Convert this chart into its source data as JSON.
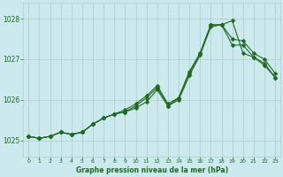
{
  "xlabel": "Graphe pression niveau de la mer (hPa)",
  "xlim": [
    -0.5,
    23.5
  ],
  "ylim": [
    1024.6,
    1028.4
  ],
  "yticks": [
    1025,
    1026,
    1027,
    1028
  ],
  "xticks": [
    0,
    1,
    2,
    3,
    4,
    5,
    6,
    7,
    8,
    9,
    10,
    11,
    12,
    13,
    14,
    15,
    16,
    17,
    18,
    19,
    20,
    21,
    22,
    23
  ],
  "bg_color": "#cce9ee",
  "grid_color": "#aacccc",
  "line_color": "#1e6b1e",
  "series1": {
    "x": [
      0,
      1,
      2,
      3,
      4,
      5,
      6,
      7,
      8,
      9,
      10,
      11,
      12,
      13,
      14,
      15,
      16,
      17,
      18,
      19,
      20,
      21,
      22,
      23
    ],
    "y": [
      1025.1,
      1025.05,
      1025.1,
      1025.2,
      1025.15,
      1025.2,
      1025.4,
      1025.55,
      1025.65,
      1025.7,
      1025.8,
      1025.95,
      1026.25,
      1025.85,
      1026.0,
      1026.6,
      1027.1,
      1027.8,
      1027.85,
      1027.35,
      1027.35,
      1027.05,
      1026.9,
      1026.55
    ]
  },
  "series2": {
    "x": [
      0,
      1,
      2,
      3,
      4,
      5,
      6,
      7,
      8,
      9,
      10,
      11,
      12,
      13,
      14,
      15,
      16,
      17,
      18,
      19,
      20,
      21,
      22,
      23
    ],
    "y": [
      1025.1,
      1025.05,
      1025.1,
      1025.2,
      1025.15,
      1025.2,
      1025.4,
      1025.55,
      1025.65,
      1025.7,
      1025.85,
      1026.05,
      1026.3,
      1025.85,
      1026.05,
      1026.7,
      1027.15,
      1027.85,
      1027.85,
      1027.5,
      1027.45,
      1027.15,
      1027.0,
      1026.65
    ]
  },
  "series3": {
    "x": [
      0,
      1,
      2,
      3,
      4,
      5,
      6,
      7,
      8,
      9,
      10,
      11,
      12,
      13,
      14,
      15,
      16,
      17,
      18,
      19,
      20,
      21,
      22,
      23
    ],
    "y": [
      1025.1,
      1025.05,
      1025.1,
      1025.2,
      1025.15,
      1025.2,
      1025.4,
      1025.55,
      1025.65,
      1025.75,
      1025.9,
      1026.1,
      1026.35,
      1025.9,
      1026.05,
      1026.65,
      1027.15,
      1027.85,
      1027.85,
      1027.95,
      1027.15,
      1027.05,
      1026.85,
      1026.55
    ]
  }
}
